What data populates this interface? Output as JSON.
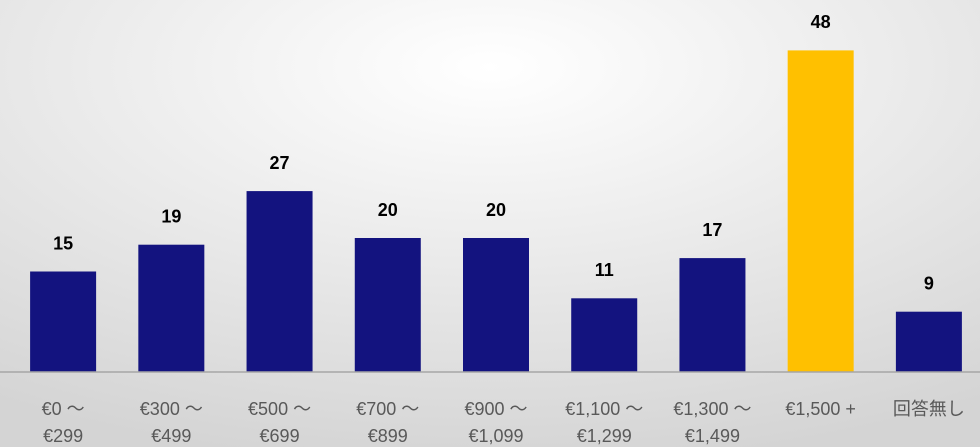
{
  "chart_data": {
    "type": "bar",
    "categories": [
      [
        "€0 ～",
        "€299"
      ],
      [
        "€300 ～",
        "€499"
      ],
      [
        "€500 ～",
        "€699"
      ],
      [
        "€700 ～",
        "€899"
      ],
      [
        "€900 ～",
        "€1,099"
      ],
      [
        "€1,100 ～",
        "€1,299"
      ],
      [
        "€1,300 ～",
        "€1,499"
      ],
      [
        "€1,500 +"
      ],
      [
        "回答無し"
      ]
    ],
    "values": [
      15,
      19,
      27,
      20,
      20,
      11,
      17,
      48,
      9
    ],
    "colors": [
      "#13137f",
      "#13137f",
      "#13137f",
      "#13137f",
      "#13137f",
      "#13137f",
      "#13137f",
      "#ffc000",
      "#13137f"
    ],
    "ylim": [
      0,
      50
    ]
  }
}
